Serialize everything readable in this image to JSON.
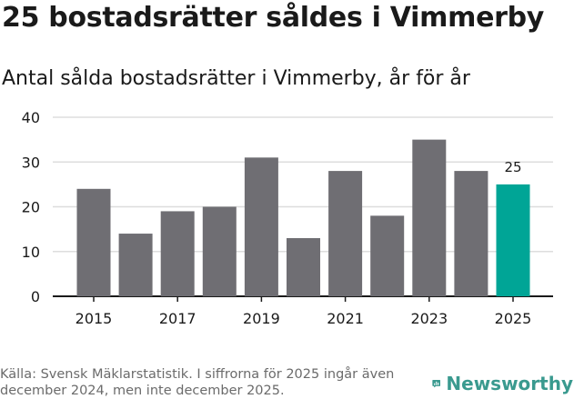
{
  "header": {
    "title": "25 bostadsrätter såldes i Vimmerby",
    "subtitle": "Antal sålda bostadsrätter i Vimmerby, år för år"
  },
  "chart_data": {
    "type": "bar",
    "title": "Antal sålda bostadsrätter i Vimmerby, år för år",
    "categories": [
      "2015",
      "2016",
      "2017",
      "2018",
      "2019",
      "2020",
      "2021",
      "2022",
      "2023",
      "2024",
      "2025"
    ],
    "values": [
      24,
      14,
      19,
      20,
      31,
      13,
      28,
      18,
      35,
      28,
      25
    ],
    "x_tick_labels": [
      "2015",
      "2017",
      "2019",
      "2021",
      "2023",
      "2025"
    ],
    "y_ticks": [
      0,
      10,
      20,
      30,
      40
    ],
    "ylim": [
      0,
      40
    ],
    "grid": true,
    "highlight": {
      "category": "2025",
      "label": "25"
    },
    "colors": {
      "bar": "#6f6e73",
      "highlight": "#00a596",
      "grid": "#dddddd"
    }
  },
  "footer": {
    "source_line1": "Källa: Svensk Mäklarstatistik. I siffrorna för 2025 ingår även",
    "source_line2": "december 2024, men inte december 2025."
  },
  "logo": {
    "text": "Newsworthy",
    "icon": "bar-chart-speech-bubble-icon",
    "color": "#3a9a8f"
  }
}
